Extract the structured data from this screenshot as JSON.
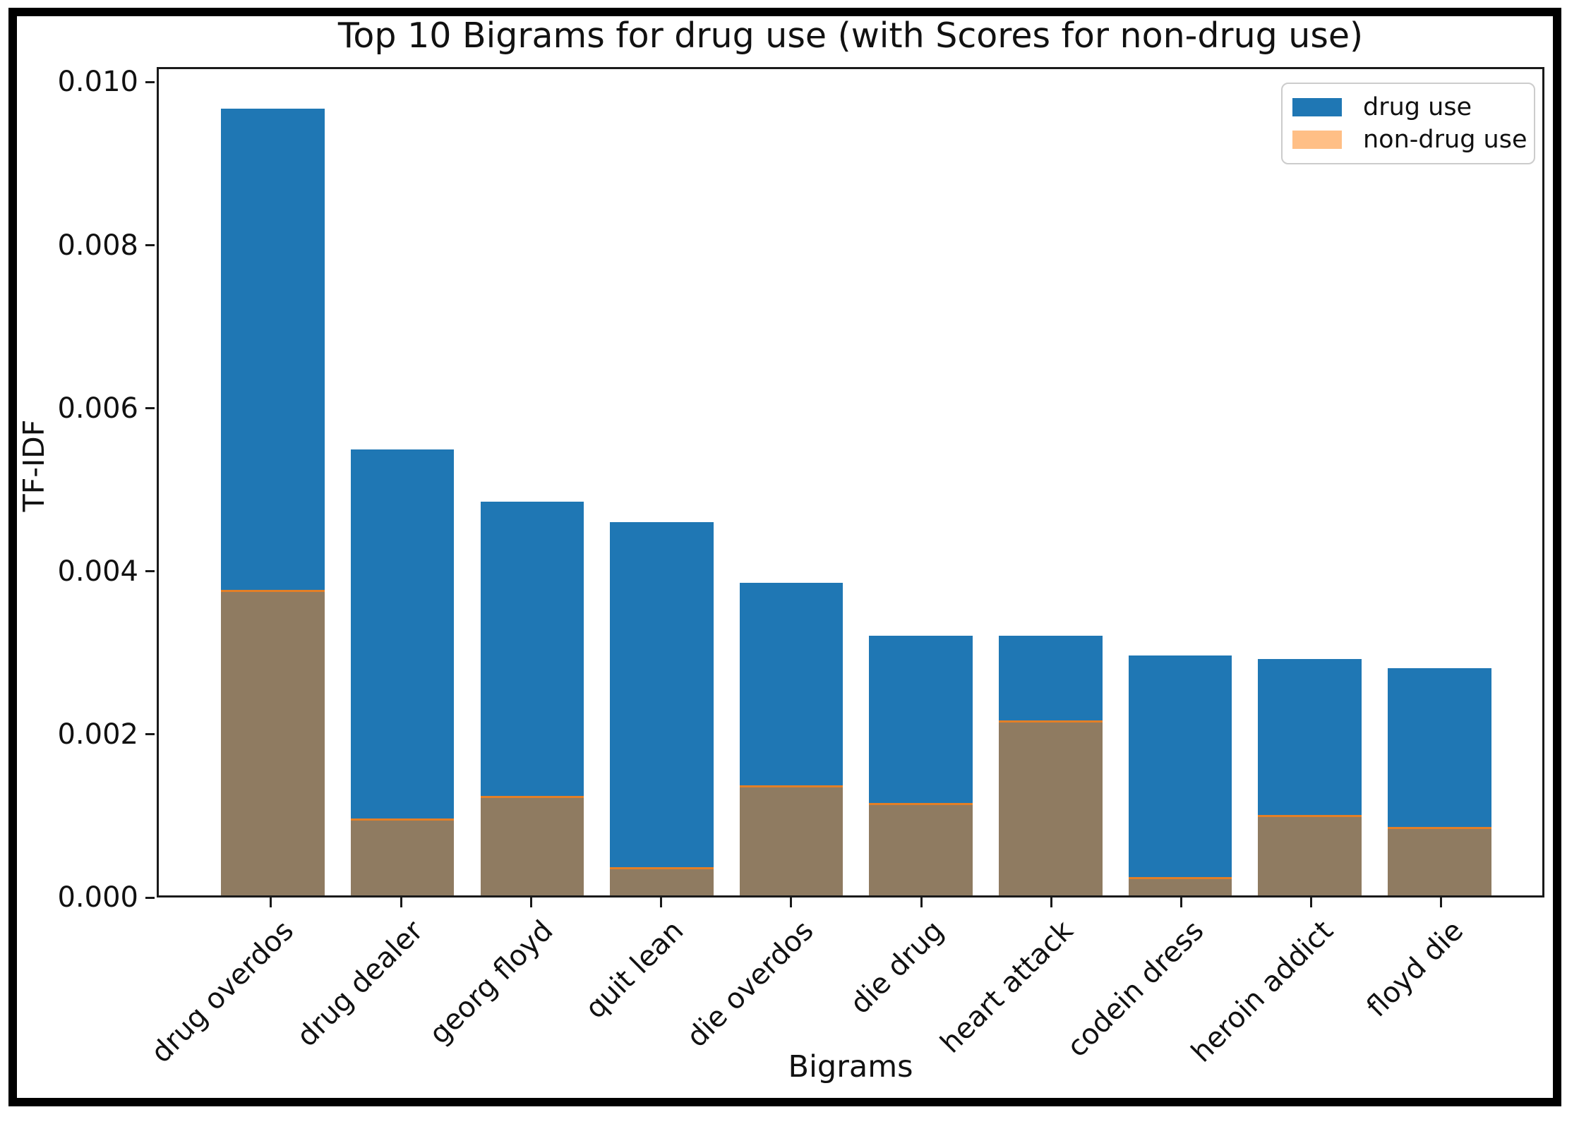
{
  "window": {
    "background_color": "#ffffff",
    "frame_color": "#000000"
  },
  "chart_data": {
    "type": "bar",
    "title": "Top 10 Bigrams for drug use (with Scores for non-drug use)",
    "xlabel": "Bigrams",
    "ylabel": "TF-IDF",
    "categories": [
      "drug overdos",
      "drug dealer",
      "georg floyd",
      "quit lean",
      "die overdos",
      "die drug",
      "heart attack",
      "codein dress",
      "heroin addict",
      "floyd die"
    ],
    "series": [
      {
        "name": "drug use",
        "color": "#1f77b4",
        "alpha": 1.0,
        "values": [
          0.0097,
          0.0055,
          0.00485,
          0.0046,
          0.00385,
          0.0032,
          0.0032,
          0.00296,
          0.00291,
          0.0028
        ]
      },
      {
        "name": "non-drug use",
        "color": "#ff7f0e",
        "alpha": 0.5,
        "values": [
          0.00377,
          0.00095,
          0.00123,
          0.00035,
          0.00136,
          0.00114,
          0.00216,
          0.00023,
          0.00099,
          0.00084
        ]
      }
    ],
    "series_layout": "overlapped",
    "overlap_color": "#8f7b61",
    "ylim": [
      0,
      0.010185
    ],
    "yticks": [
      0,
      0.002,
      0.004,
      0.006,
      0.008,
      0.01
    ],
    "ytick_labels": [
      "0.000",
      "0.002",
      "0.004",
      "0.006",
      "0.008",
      "0.010"
    ],
    "xtick_rotation": 45,
    "grid": false,
    "legend_position": "upper right",
    "legend_items": [
      "drug use",
      "non-drug use"
    ]
  }
}
